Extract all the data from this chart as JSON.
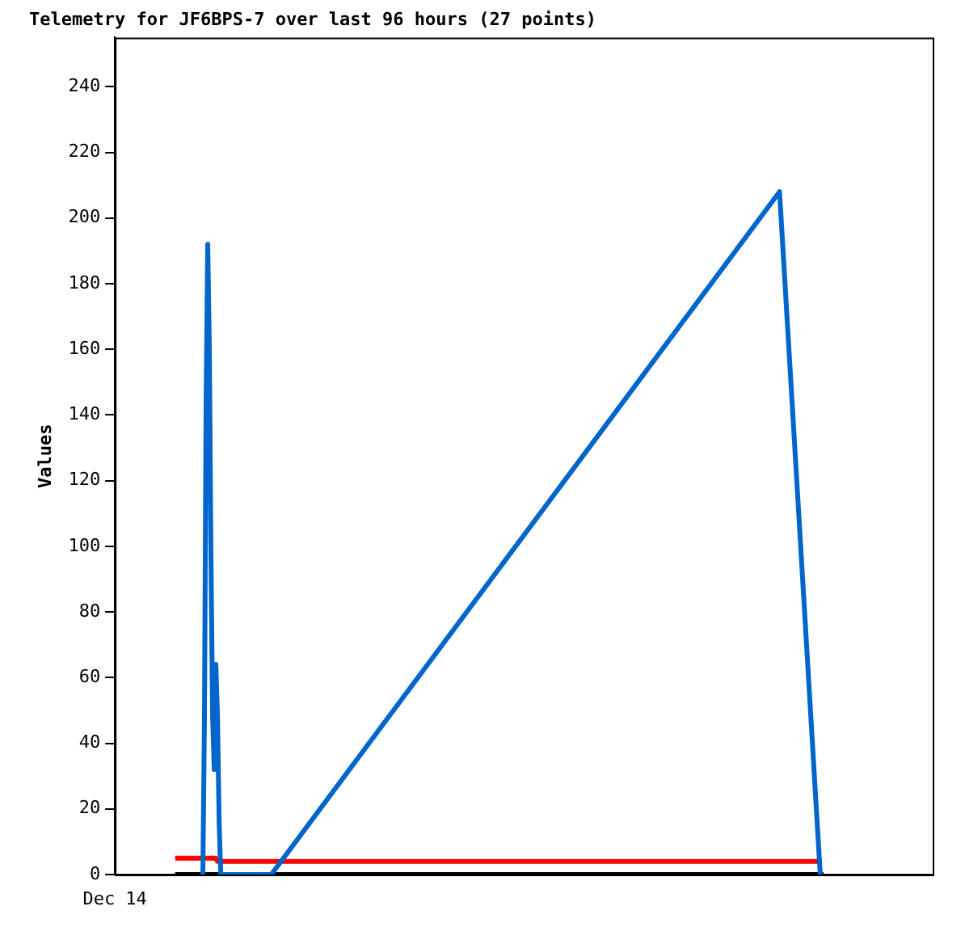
{
  "chart_data": {
    "type": "line",
    "title": "Telemetry for JF6BPS-7 over last 96 hours (27 points)",
    "ylabel": "Values",
    "annotations": [
      "Dec 14"
    ],
    "categories": [
      null,
      null,
      null,
      null,
      null,
      null,
      null,
      null,
      null,
      null,
      null,
      null,
      null,
      null,
      null,
      null,
      null,
      null,
      null,
      null,
      null,
      null,
      null,
      null,
      null,
      null,
      null,
      null,
      null,
      null,
      null,
      null,
      null,
      null,
      null,
      null,
      null,
      null,
      null,
      null,
      null,
      null,
      null,
      null,
      null,
      null,
      null,
      null,
      null,
      null,
      null,
      null,
      null,
      null,
      null,
      null,
      null,
      null,
      null,
      null,
      null,
      null,
      null,
      null,
      null,
      null,
      null,
      null,
      null,
      null,
      null,
      null,
      null,
      null,
      null,
      null,
      null,
      null,
      null,
      null,
      null,
      null,
      null,
      null,
      null,
      null,
      null,
      null,
      null,
      null,
      null,
      null,
      null,
      null,
      null,
      null,
      null,
      null,
      null,
      null,
      null,
      null,
      null,
      null,
      null,
      null,
      null,
      null,
      null,
      null,
      null,
      null,
      null,
      null,
      null,
      null,
      null,
      null,
      null,
      null,
      null,
      null,
      null,
      null,
      null,
      null,
      null,
      null,
      null,
      null,
      null,
      null,
      null,
      null,
      null,
      null,
      null,
      null,
      null,
      null,
      null,
      null,
      null,
      null,
      null,
      null,
      null,
      null,
      null,
      null,
      null,
      null,
      null,
      null,
      null,
      null,
      null,
      null,
      null,
      null,
      null,
      null,
      null,
      null,
      null,
      null,
      null,
      null,
      null,
      null,
      null,
      null,
      null,
      null,
      null,
      null,
      null,
      null,
      null,
      null,
      null,
      null,
      null,
      null,
      null,
      null,
      null,
      null,
      null,
      null,
      null,
      null,
      null,
      null,
      null,
      null,
      null,
      null,
      null,
      null,
      null,
      null,
      null,
      null,
      null,
      null,
      null,
      null,
      null,
      null,
      null,
      null,
      null,
      null,
      null,
      null,
      null,
      null,
      null,
      null,
      null,
      null,
      null,
      null,
      null,
      null,
      null,
      null,
      null,
      null,
      null,
      null,
      null,
      null,
      null,
      null,
      null,
      null,
      null,
      null,
      null,
      null,
      null,
      null,
      null,
      null,
      null,
      null,
      null,
      null,
      null,
      null,
      null,
      null,
      null,
      null,
      null,
      null,
      null,
      null,
      null,
      null,
      null,
      null,
      null,
      null,
      null,
      null,
      null,
      null,
      null,
      null,
      null,
      null,
      null,
      null,
      null,
      null,
      null,
      null,
      null,
      null,
      null,
      null,
      null,
      null,
      null,
      null,
      null,
      null,
      null,
      null,
      null,
      null,
      null,
      null,
      null,
      null,
      null,
      null,
      null,
      null,
      null,
      null,
      null,
      null,
      null,
      null,
      null,
      null,
      null,
      null,
      null,
      null,
      null,
      null,
      null,
      null,
      null,
      null,
      null,
      null,
      null,
      null,
      null,
      null,
      null,
      null,
      null,
      null,
      null,
      null,
      null,
      null,
      null,
      null,
      null,
      null,
      null,
      null,
      null,
      null,
      null,
      null,
      null,
      null,
      null,
      null,
      null,
      null,
      null,
      null,
      null,
      null,
      null,
      null,
      null,
      null,
      null,
      null,
      null,
      null,
      null,
      null,
      null,
      null,
      null,
      null,
      null,
      null,
      null,
      null,
      null,
      null,
      null,
      null,
      null,
      null,
      null,
      null,
      null,
      null,
      null,
      null,
      null,
      null,
      null,
      null,
      null,
      null,
      null,
      null,
      null,
      null,
      null,
      null,
      null,
      null,
      null,
      null,
      null,
      null,
      null,
      null,
      null,
      null,
      null,
      null,
      null,
      null,
      null,
      null,
      null,
      null,
      null,
      null,
      null,
      null,
      null,
      null,
      null,
      null,
      null,
      null,
      null,
      null,
      null,
      null,
      null,
      null,
      null,
      null,
      null,
      null,
      null,
      null,
      null,
      null,
      null,
      null,
      null,
      null,
      null,
      null,
      null,
      null,
      null,
      null,
      null,
      null,
      null,
      null,
      null,
      null,
      null,
      null,
      null,
      null,
      null,
      null,
      null,
      null,
      null,
      null,
      null,
      null,
      null,
      null,
      null,
      null,
      null,
      null,
      null,
      null,
      null,
      null,
      null,
      null,
      null,
      null,
      null,
      null,
      null,
      null,
      null,
      null,
      null,
      null,
      null,
      null,
      null,
      null,
      null,
      null,
      null,
      null,
      null,
      null,
      null,
      null,
      null,
      null,
      null
    ],
    "ylim": [
      0,
      255
    ],
    "yticks": [
      0,
      20,
      40,
      60,
      80,
      100,
      120,
      140,
      160,
      180,
      200,
      220,
      240
    ],
    "grid": false,
    "legend": false,
    "marker": "none",
    "line_style": "solid",
    "series": [
      {
        "color": "#0066cc",
        "values": [
          null,
          null,
          null,
          null,
          null,
          null,
          null,
          null,
          null,
          null,
          null,
          null,
          null,
          null,
          null,
          null,
          null,
          null,
          null,
          null,
          null,
          null,
          null,
          null,
          null,
          null,
          null,
          null,
          null,
          null,
          null,
          null,
          null,
          null,
          null,
          null,
          null,
          null,
          null,
          null,
          null,
          null,
          null,
          null,
          null,
          null,
          null,
          null,
          null,
          null,
          null,
          null,
          null,
          null,
          0,
          48,
          144,
          192,
          160,
          96,
          48,
          32,
          64,
          48,
          16,
          0,
          null,
          null,
          null,
          null,
          null,
          null,
          null,
          null,
          null,
          null,
          null,
          null,
          null,
          null,
          null,
          null,
          null,
          null,
          null,
          null,
          null,
          null,
          null,
          null,
          null,
          null,
          null,
          null,
          null,
          null,
          0,
          null,
          null,
          null,
          null,
          null,
          null,
          null,
          null,
          null,
          null,
          null,
          null,
          null,
          null,
          null,
          null,
          null,
          null,
          null,
          null,
          null,
          null,
          null,
          null,
          null,
          null,
          null,
          null,
          null,
          null,
          null,
          null,
          null,
          null,
          null,
          null,
          null,
          null,
          null,
          null,
          null,
          null,
          null,
          null,
          null,
          null,
          null,
          null,
          null,
          null,
          null,
          null,
          null,
          null,
          null,
          null,
          null,
          null,
          null,
          null,
          null,
          null,
          null,
          null,
          null,
          null,
          null,
          null,
          null,
          null,
          null,
          null,
          null,
          null,
          null,
          null,
          null,
          null,
          null,
          null,
          null,
          null,
          null,
          null,
          null,
          null,
          null,
          null,
          null,
          null,
          null,
          null,
          null,
          null,
          null,
          null,
          null,
          null,
          null,
          null,
          null,
          null,
          null,
          null,
          null,
          null,
          null,
          null,
          null,
          null,
          null,
          null,
          null,
          null,
          null,
          null,
          null,
          null,
          null,
          null,
          null,
          null,
          null,
          null,
          null,
          null,
          null,
          null,
          null,
          null,
          null,
          null,
          null,
          null,
          null,
          null,
          null,
          null,
          null,
          null,
          null,
          null,
          null,
          null,
          null,
          null,
          null,
          null,
          null,
          null,
          null,
          null,
          null,
          null,
          null,
          null,
          null,
          null,
          null,
          null,
          null,
          null,
          null,
          null,
          null,
          null,
          null,
          null,
          null,
          null,
          null,
          null,
          null,
          null,
          null,
          null,
          null,
          null,
          null,
          null,
          null,
          null,
          null,
          null,
          null,
          null,
          null,
          null,
          null,
          null,
          null,
          null,
          null,
          null,
          null,
          null,
          null,
          null,
          null,
          null,
          null,
          null,
          null,
          null,
          null,
          null,
          null,
          null,
          null,
          null,
          null,
          null,
          null,
          null,
          null,
          null,
          null,
          null,
          null,
          null,
          null,
          null,
          null,
          null,
          null,
          null,
          null,
          null,
          null,
          null,
          null,
          null,
          null,
          null,
          null,
          null,
          null,
          null,
          null,
          null,
          null,
          null,
          null,
          null,
          null,
          null,
          null,
          null,
          null,
          null,
          null,
          null,
          null,
          null,
          null,
          null,
          null,
          null,
          null,
          null,
          null,
          null,
          null,
          null,
          null,
          null,
          null,
          null,
          null,
          null,
          null,
          null,
          null,
          null,
          null,
          null,
          null,
          null,
          null,
          null,
          null,
          null,
          null,
          null,
          null,
          null,
          null,
          null,
          null,
          null,
          null,
          null,
          null,
          null,
          null,
          null,
          null,
          null,
          null,
          null,
          null,
          null,
          null,
          null,
          null,
          null,
          null,
          null,
          null,
          null,
          null,
          208,
          null,
          null,
          null,
          null,
          null,
          null,
          null,
          null,
          null,
          null,
          null,
          null,
          null,
          null,
          null,
          null,
          null,
          null,
          null,
          null,
          null,
          null,
          null,
          null,
          0,
          null,
          null,
          null,
          null,
          null,
          null,
          null,
          null,
          null,
          null,
          null,
          null,
          null,
          null,
          null,
          null,
          null,
          null,
          null,
          null,
          null,
          null,
          null,
          null,
          null,
          null,
          null,
          null,
          null,
          null,
          null,
          null,
          null,
          null,
          null,
          null,
          null,
          null,
          null,
          null,
          null,
          null,
          null,
          null,
          null,
          null,
          null,
          null,
          null,
          null,
          null,
          null,
          null,
          null,
          null,
          null,
          null,
          null,
          null,
          null,
          null,
          null,
          null,
          null,
          null,
          null,
          null,
          null,
          null
        ]
      },
      {
        "color": "#ff0000",
        "values": [
          null,
          null,
          null,
          null,
          null,
          null,
          null,
          null,
          null,
          null,
          null,
          null,
          null,
          null,
          null,
          null,
          null,
          null,
          null,
          null,
          null,
          null,
          null,
          null,
          null,
          null,
          null,
          null,
          null,
          null,
          null,
          null,
          null,
          null,
          null,
          null,
          null,
          5,
          null,
          null,
          null,
          null,
          null,
          null,
          null,
          null,
          null,
          null,
          null,
          null,
          null,
          null,
          null,
          null,
          null,
          null,
          null,
          null,
          null,
          null,
          null,
          null,
          5,
          4,
          null,
          null,
          null,
          null,
          null,
          null,
          null,
          null,
          null,
          null,
          null,
          null,
          null,
          null,
          null,
          null,
          null,
          null,
          null,
          null,
          null,
          null,
          null,
          null,
          null,
          null,
          null,
          null,
          null,
          null,
          null,
          null,
          null,
          null,
          null,
          null,
          null,
          null,
          null,
          null,
          null,
          null,
          null,
          null,
          null,
          null,
          null,
          null,
          null,
          null,
          null,
          null,
          null,
          null,
          null,
          null,
          null,
          null,
          null,
          null,
          null,
          null,
          null,
          null,
          null,
          null,
          null,
          null,
          null,
          null,
          null,
          null,
          null,
          null,
          null,
          null,
          null,
          null,
          null,
          null,
          null,
          null,
          null,
          null,
          null,
          null,
          null,
          null,
          null,
          null,
          null,
          null,
          null,
          null,
          null,
          null,
          null,
          null,
          null,
          null,
          null,
          null,
          null,
          null,
          null,
          null,
          null,
          null,
          null,
          null,
          null,
          null,
          null,
          null,
          null,
          null,
          null,
          null,
          null,
          null,
          null,
          null,
          null,
          null,
          null,
          null,
          null,
          null,
          null,
          null,
          null,
          null,
          null,
          null,
          null,
          null,
          null,
          null,
          null,
          null,
          null,
          null,
          null,
          null,
          null,
          null,
          null,
          null,
          null,
          null,
          null,
          null,
          null,
          null,
          null,
          null,
          null,
          null,
          null,
          null,
          null,
          null,
          null,
          null,
          null,
          null,
          null,
          null,
          null,
          null,
          null,
          null,
          null,
          null,
          null,
          null,
          null,
          null,
          null,
          null,
          null,
          null,
          null,
          null,
          null,
          null,
          null,
          null,
          null,
          null,
          null,
          null,
          null,
          null,
          null,
          null,
          null,
          null,
          null,
          null,
          null,
          null,
          null,
          null,
          null,
          null,
          null,
          null,
          null,
          null,
          null,
          null,
          null,
          null,
          null,
          null,
          null,
          null,
          null,
          null,
          null,
          null,
          null,
          null,
          null,
          null,
          null,
          null,
          null,
          null,
          null,
          null,
          null,
          null,
          null,
          null,
          null,
          null,
          null,
          null,
          null,
          null,
          null,
          null,
          null,
          null,
          null,
          null,
          null,
          null,
          null,
          null,
          null,
          null,
          null,
          null,
          null,
          null,
          null,
          null,
          null,
          null,
          null,
          null,
          null,
          null,
          null,
          null,
          null,
          null,
          null,
          null,
          null,
          null,
          null,
          null,
          null,
          null,
          null,
          null,
          null,
          null,
          null,
          null,
          null,
          null,
          null,
          null,
          null,
          null,
          null,
          null,
          null,
          null,
          null,
          null,
          null,
          null,
          null,
          null,
          null,
          null,
          null,
          null,
          null,
          null,
          null,
          null,
          null,
          null,
          null,
          null,
          null,
          null,
          null,
          null,
          null,
          null,
          null,
          null,
          null,
          null,
          null,
          null,
          null,
          null,
          null,
          null,
          null,
          null,
          null,
          null,
          null,
          null,
          null,
          null,
          null,
          null,
          null,
          null,
          null,
          null,
          null,
          null,
          null,
          null,
          null,
          null,
          null,
          null,
          null,
          null,
          null,
          null,
          null,
          null,
          null,
          null,
          null,
          null,
          null,
          null,
          null,
          null,
          null,
          null,
          null,
          null,
          null,
          null,
          4,
          null,
          null,
          null,
          null,
          null,
          null,
          null,
          null,
          null,
          null,
          null,
          null,
          null,
          null,
          null,
          null,
          null,
          null,
          null,
          null,
          null,
          null,
          null,
          null,
          null,
          null,
          null,
          null,
          null,
          null,
          null,
          null,
          null,
          null,
          null,
          null,
          null,
          null,
          null,
          null,
          null,
          null,
          null,
          null,
          null,
          null,
          null,
          null,
          null,
          null,
          null,
          null,
          null,
          null,
          null,
          null,
          null,
          null,
          null,
          null,
          null,
          null,
          null,
          null,
          null,
          null,
          null,
          null
        ]
      },
      {
        "color": "#000000",
        "values": [
          null,
          null,
          null,
          null,
          null,
          null,
          null,
          null,
          null,
          null,
          null,
          null,
          null,
          null,
          null,
          null,
          null,
          null,
          null,
          null,
          null,
          null,
          null,
          null,
          null,
          null,
          null,
          null,
          null,
          null,
          null,
          null,
          null,
          null,
          null,
          null,
          null,
          0,
          null,
          null,
          null,
          null,
          null,
          null,
          null,
          null,
          null,
          null,
          null,
          null,
          null,
          null,
          null,
          null,
          null,
          null,
          null,
          null,
          null,
          null,
          null,
          null,
          null,
          null,
          null,
          null,
          null,
          null,
          null,
          null,
          null,
          null,
          null,
          null,
          null,
          null,
          null,
          null,
          null,
          null,
          null,
          null,
          null,
          null,
          null,
          null,
          null,
          null,
          null,
          null,
          null,
          null,
          null,
          null,
          null,
          null,
          null,
          null,
          null,
          null,
          null,
          null,
          null,
          null,
          null,
          null,
          null,
          null,
          null,
          null,
          null,
          null,
          null,
          null,
          null,
          null,
          null,
          null,
          null,
          null,
          null,
          null,
          null,
          null,
          null,
          null,
          null,
          null,
          null,
          null,
          null,
          null,
          null,
          null,
          null,
          null,
          null,
          null,
          null,
          null,
          null,
          null,
          null,
          null,
          null,
          null,
          null,
          null,
          null,
          null,
          null,
          null,
          null,
          null,
          null,
          null,
          null,
          null,
          null,
          null,
          null,
          null,
          null,
          null,
          null,
          null,
          null,
          null,
          null,
          null,
          null,
          null,
          null,
          null,
          null,
          null,
          null,
          null,
          null,
          null,
          null,
          null,
          null,
          null,
          null,
          null,
          null,
          null,
          null,
          null,
          null,
          null,
          null,
          null,
          null,
          null,
          null,
          null,
          null,
          null,
          null,
          null,
          null,
          null,
          null,
          null,
          null,
          null,
          null,
          null,
          null,
          null,
          null,
          null,
          null,
          null,
          null,
          null,
          null,
          null,
          null,
          null,
          null,
          null,
          null,
          null,
          null,
          null,
          null,
          null,
          null,
          null,
          null,
          null,
          null,
          null,
          null,
          null,
          null,
          null,
          null,
          null,
          null,
          null,
          null,
          null,
          null,
          null,
          null,
          null,
          null,
          null,
          null,
          null,
          null,
          null,
          null,
          null,
          null,
          null,
          null,
          null,
          null,
          null,
          null,
          null,
          null,
          null,
          null,
          null,
          null,
          null,
          null,
          null,
          null,
          null,
          null,
          null,
          null,
          null,
          null,
          null,
          null,
          null,
          null,
          null,
          null,
          null,
          null,
          null,
          null,
          null,
          null,
          null,
          null,
          null,
          null,
          null,
          null,
          null,
          null,
          null,
          null,
          null,
          null,
          null,
          null,
          null,
          null,
          null,
          null,
          null,
          null,
          null,
          null,
          null,
          null,
          null,
          null,
          null,
          null,
          null,
          null,
          null,
          null,
          null,
          null,
          null,
          null,
          null,
          null,
          null,
          null,
          null,
          null,
          null,
          null,
          null,
          null,
          null,
          null,
          null,
          null,
          null,
          null,
          null,
          null,
          null,
          null,
          null,
          null,
          null,
          null,
          null,
          null,
          null,
          null,
          null,
          null,
          null,
          null,
          null,
          null,
          null,
          null,
          null,
          null,
          null,
          null,
          null,
          null,
          null,
          null,
          null,
          null,
          null,
          null,
          null,
          null,
          null,
          null,
          null,
          null,
          null,
          null,
          null,
          null,
          null,
          null,
          null,
          null,
          null,
          null,
          null,
          null,
          null,
          null,
          null,
          null,
          null,
          null,
          null,
          null,
          null,
          null,
          null,
          null,
          null,
          null,
          null,
          null,
          null,
          null,
          null,
          null,
          null,
          null,
          null,
          null,
          null,
          null,
          null,
          null,
          null,
          null,
          null,
          null,
          null,
          null,
          null,
          null,
          null,
          null,
          null,
          null,
          0,
          null,
          null,
          null,
          null,
          null,
          null,
          null,
          null,
          null,
          null,
          null,
          null,
          null,
          null,
          null,
          null,
          null,
          null,
          null,
          null,
          null,
          null,
          null,
          null,
          null,
          null,
          null,
          null,
          null,
          null,
          null,
          null,
          null,
          null,
          null,
          null,
          null,
          null,
          null,
          null,
          null,
          null,
          null,
          null,
          null,
          null,
          null,
          null,
          null,
          null,
          null,
          null,
          null,
          null,
          null,
          null,
          null,
          null,
          null,
          null,
          null,
          null,
          null,
          null,
          null,
          null,
          null
        ]
      }
    ]
  }
}
